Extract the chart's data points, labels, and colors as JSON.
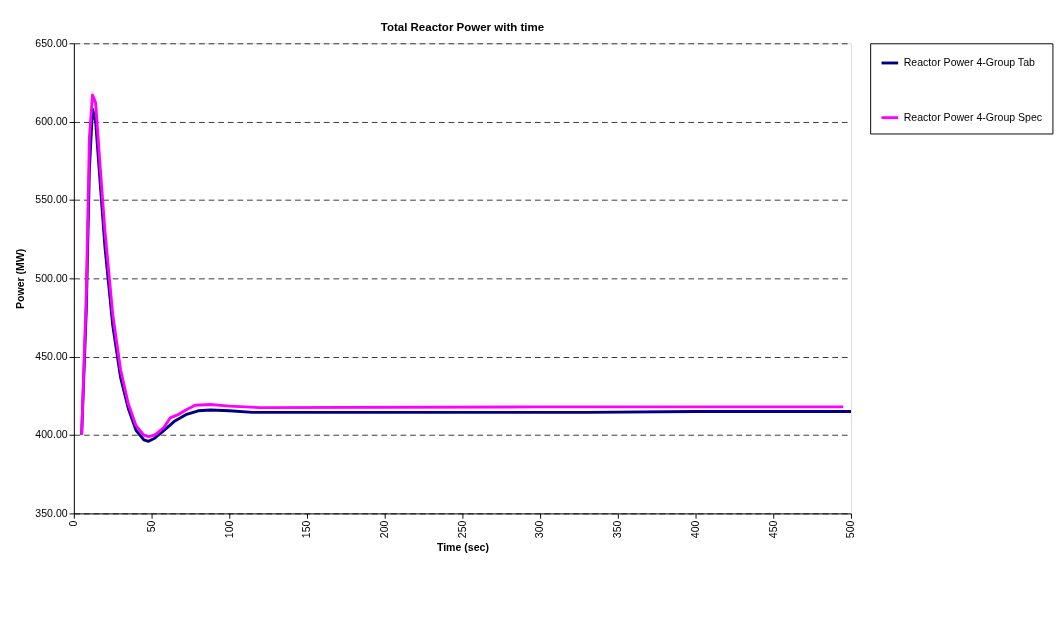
{
  "chart_data": {
    "type": "line",
    "title": "Total Reactor Power with time",
    "xlabel": "Time (sec)",
    "ylabel": "Power (MW)",
    "series": [
      {
        "name": "Reactor Power 4-Group Tab",
        "color": "#000080",
        "x": [
          5,
          8,
          10,
          12,
          14,
          17,
          20,
          25,
          30,
          35,
          40,
          45,
          48,
          52,
          58,
          65,
          72,
          80,
          88,
          100,
          115,
          200,
          330,
          400,
          500
        ],
        "values": [
          400,
          480,
          570,
          608,
          600,
          560,
          520,
          470,
          437,
          417,
          403,
          397,
          396,
          398,
          403,
          409,
          413,
          415.5,
          416,
          415.5,
          414.5,
          414.5,
          414.5,
          415,
          415
        ]
      },
      {
        "name": "Reactor Power 4-Group Spec",
        "color": "#ff00ff",
        "x": [
          5,
          8,
          10,
          12,
          14,
          17,
          20,
          25,
          30,
          35,
          40,
          45,
          48,
          52,
          58,
          62,
          67,
          72,
          78,
          88,
          100,
          120,
          300,
          495
        ],
        "values": [
          400,
          490,
          590,
          617,
          612,
          570,
          530,
          477,
          442,
          420,
          406,
          400,
          399,
          400,
          405,
          411,
          413,
          416,
          419,
          419.5,
          418.5,
          417.5,
          418,
          418
        ]
      }
    ],
    "xlim": [
      0,
      500
    ],
    "xticks": [
      0,
      50,
      100,
      150,
      200,
      250,
      300,
      350,
      400,
      450,
      500
    ],
    "ylim": [
      350,
      650
    ],
    "yticks": [
      {
        "value": 350,
        "label": "350.00"
      },
      {
        "value": 400,
        "label": "400.00"
      },
      {
        "value": 450,
        "label": "450.00"
      },
      {
        "value": 500,
        "label": "500.00"
      },
      {
        "value": 550,
        "label": "550.00"
      },
      {
        "value": 600,
        "label": "600.00"
      },
      {
        "value": 650,
        "label": "650.00"
      }
    ],
    "grid": "y",
    "legend": "right",
    "line_style": "solid",
    "marker": "none"
  }
}
